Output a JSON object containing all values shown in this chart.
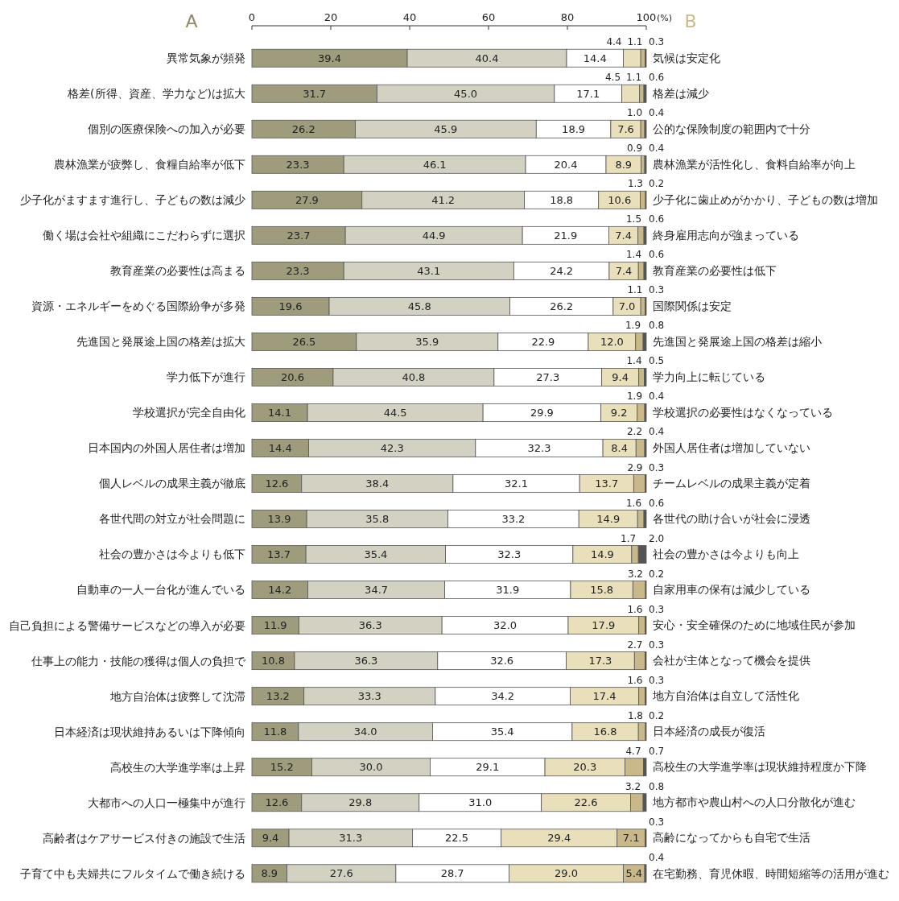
{
  "chart_data": {
    "type": "bar",
    "orientation": "horizontal",
    "stacked": true,
    "xlabel": "(%)",
    "xlim": [
      0,
      100
    ],
    "xticks": [
      0,
      20,
      40,
      60,
      80,
      100
    ],
    "annotations": [
      "A",
      "B"
    ],
    "categories": [
      "異常気象が頻発",
      "格差(所得、資産、学力など)は拡大",
      "個別の医療保険への加入が必要",
      "農林漁業が疲弊し、食糧自給率が低下",
      "少子化がますます進行し、子どもの数は減少",
      "働く場は会社や組織にこだわらずに選択",
      "教育産業の必要性は高まる",
      "資源・エネルギーをめぐる国際紛争が多発",
      "先進国と発展途上国の格差は拡大",
      "学力低下が進行",
      "学校選択が完全自由化",
      "日本国内の外国人居住者は増加",
      "個人レベルの成果主義が徹底",
      "各世代間の対立が社会問題に",
      "社会の豊かさは今よりも低下",
      "自動車の一人一台化が進んでいる",
      "自己負担による警備サービスなどの導入が必要",
      "仕事上の能力・技能の獲得は個人の負担で",
      "地方自治体は疲弊して沈滞",
      "日本経済は現状維持あるいは下降傾向",
      "高校生の大学進学率は上昇",
      "大都市への人口一極集中が進行",
      "高齢者はケアサービス付きの施設で生活",
      "子育て中も夫婦共にフルタイムで働き続ける"
    ],
    "y2_categories": [
      "気候は安定化",
      "格差は減少",
      "公的な保険制度の範囲内で十分",
      "農林漁業が活性化し、食料自給率が向上",
      "少子化に歯止めがかかり、子どもの数は増加",
      "終身雇用志向が強まっている",
      "教育産業の必要性は低下",
      "国際関係は安定",
      "先進国と発展途上国の格差は縮小",
      "学力向上に転じている",
      "学校選択の必要性はなくなっている",
      "外国人居住者は増加していない",
      "チームレベルの成果主義が定着",
      "各世代の助け合いが社会に浸透",
      "社会の豊かさは今よりも向上",
      "自家用車の保有は減少している",
      "安心・安全確保のために地域住民が参加",
      "会社が主体となって機会を提供",
      "地方自治体は自立して活性化",
      "日本経済の成長が復活",
      "高校生の大学進学率は現状維持程度か下降",
      "地方都市や農山村への人口分散化が進む",
      "高齢になってからも自宅で生活",
      "在宅勤務、育児休暇、時間短縮等の活用が進む"
    ],
    "series": [
      {
        "color": "#9e9c7c",
        "values": [
          39.4,
          31.7,
          26.2,
          23.3,
          27.9,
          23.7,
          23.3,
          19.6,
          26.5,
          20.6,
          14.1,
          14.4,
          12.6,
          13.9,
          13.7,
          14.2,
          11.9,
          10.8,
          13.2,
          11.8,
          15.2,
          12.6,
          9.4,
          8.9
        ],
        "value_labels": [
          "39.4",
          "31.7",
          "26.2",
          "23.3",
          "27.9",
          "23.7",
          "23.3",
          "19.6",
          "26.5",
          "20.6",
          "14.1",
          "14.4",
          "12.6",
          "13.9",
          "13.7",
          "14.2",
          "11.9",
          "10.8",
          "13.2",
          "11.8",
          "15.2",
          "12.6",
          "9.4",
          "8.9"
        ]
      },
      {
        "color": "#d3d1c2",
        "values": [
          40.4,
          45.0,
          45.9,
          46.1,
          41.2,
          44.9,
          43.1,
          45.8,
          35.9,
          40.8,
          44.5,
          42.3,
          38.4,
          35.8,
          35.4,
          34.7,
          36.3,
          36.3,
          33.3,
          34.0,
          30.0,
          29.8,
          31.3,
          27.6
        ],
        "value_labels": [
          "40.4",
          "45.0",
          "45.9",
          "46.1",
          "41.2",
          "44.9",
          "43.1",
          "45.8",
          "35.9",
          "40.8",
          "44.5",
          "42.3",
          "38.4",
          "35.8",
          "35.4",
          "34.7",
          "36.3",
          "36.3",
          "33.3",
          "34.0",
          "30.0",
          "29.8",
          "31.3",
          "27.6"
        ]
      },
      {
        "color": "#ffffff",
        "values": [
          14.4,
          17.1,
          18.9,
          20.4,
          18.8,
          21.9,
          24.2,
          26.2,
          22.9,
          27.3,
          29.9,
          32.3,
          32.1,
          33.2,
          32.3,
          31.9,
          32.0,
          32.6,
          34.2,
          35.4,
          29.1,
          31.0,
          22.5,
          28.7
        ],
        "value_labels": [
          "14.4",
          "17.1",
          "18.9",
          "20.4",
          "18.8",
          "21.9",
          "24.2",
          "26.2",
          "22.9",
          "27.3",
          "29.9",
          "32.3",
          "32.1",
          "33.2",
          "32.3",
          "31.9",
          "32.0",
          "32.6",
          "34.2",
          "35.4",
          "29.1",
          "31.0",
          "22.5",
          "28.7"
        ]
      },
      {
        "color": "#e9dfba",
        "values": [
          4.4,
          4.5,
          7.6,
          8.9,
          10.6,
          7.4,
          7.4,
          7.0,
          12.0,
          9.4,
          9.2,
          8.4,
          13.7,
          14.9,
          14.9,
          15.8,
          17.9,
          17.3,
          17.4,
          16.8,
          20.3,
          22.6,
          29.4,
          29.0
        ],
        "value_labels": [
          "4.4",
          "4.5",
          "7.6",
          "8.9",
          "10.6",
          "7.4",
          "7.4",
          "7.0",
          "12.0",
          "9.4",
          "9.2",
          "8.4",
          "13.7",
          "14.9",
          "14.9",
          "15.8",
          "17.9",
          "17.3",
          "17.4",
          "16.8",
          "20.3",
          "22.6",
          "29.4",
          "29.0"
        ]
      },
      {
        "color": "#c9b98a",
        "values": [
          1.1,
          1.1,
          1.0,
          0.9,
          1.3,
          1.5,
          1.4,
          1.1,
          1.9,
          1.4,
          1.9,
          2.2,
          2.9,
          1.6,
          1.7,
          3.2,
          1.6,
          2.7,
          1.6,
          1.8,
          4.7,
          3.2,
          7.1,
          5.4
        ],
        "value_labels": [
          "1.1",
          "1.1",
          "1.0",
          "0.9",
          "1.3",
          "1.5",
          "1.4",
          "1.1",
          "1.9",
          "1.4",
          "1.9",
          "2.2",
          "2.9",
          "1.6",
          "1.7",
          "3.2",
          "1.6",
          "2.7",
          "1.6",
          "1.8",
          "4.7",
          "3.2",
          "7.1",
          "5.4"
        ]
      },
      {
        "color": "#555555",
        "values": [
          0.3,
          0.6,
          0.4,
          0.4,
          0.2,
          0.6,
          0.6,
          0.3,
          0.8,
          0.5,
          0.4,
          0.4,
          0.3,
          0.6,
          2.0,
          0.2,
          0.3,
          0.3,
          0.3,
          0.2,
          0.7,
          0.8,
          0.3,
          0.4
        ],
        "value_labels": [
          "0.3",
          "0.6",
          "0.4",
          "0.4",
          "0.2",
          "0.6",
          "0.6",
          "0.3",
          "0.8",
          "0.5",
          "0.4",
          "0.4",
          "0.3",
          "0.6",
          "2.0",
          "0.2",
          "0.3",
          "0.3",
          "0.3",
          "0.2",
          "0.7",
          "0.8",
          "0.3",
          "0.4"
        ]
      }
    ]
  }
}
